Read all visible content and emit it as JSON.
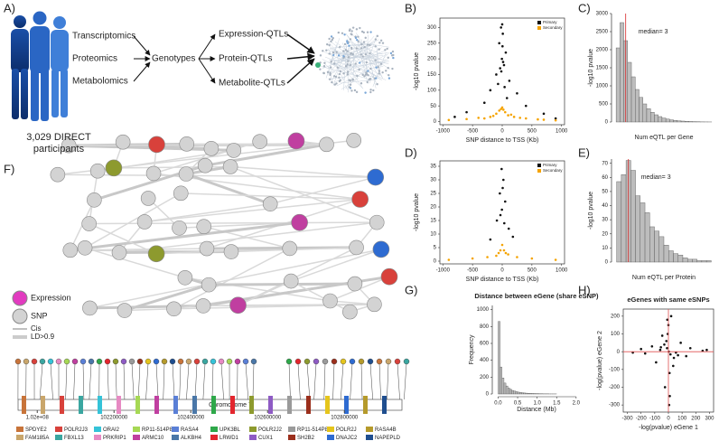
{
  "panel_labels": [
    "A)",
    "B)",
    "C)",
    "D)",
    "E)",
    "F)",
    "G)",
    "H)"
  ],
  "panel_a": {
    "participants": "3,029 DIRECT participants",
    "sources": [
      "Transcriptomics",
      "Proteomics",
      "Metabolomics"
    ],
    "hub": "Genotypes",
    "qtls": [
      "Expression-QTLs",
      "Protein-QTLs",
      "Metabolite-QTLs"
    ]
  },
  "panel_f": {
    "legend": [
      "Expression",
      "SNP",
      "Cis",
      "LD>0.9"
    ],
    "track": {
      "label": "Chromosome 7",
      "xlim": [
        101950000,
        102950000
      ],
      "ticks": [
        {
          "value": 102000000,
          "label": "1.02e+08"
        },
        102200000,
        102400000,
        102600000,
        102800000
      ]
    },
    "genes": [
      {
        "name": "SPDYE2",
        "color": "#c8743a"
      },
      {
        "name": "FAM185A",
        "color": "#c9a66b"
      },
      {
        "name": "POLR2J3",
        "color": "#d8413b"
      },
      {
        "name": "FBXL13",
        "color": "#3aa6a0"
      },
      {
        "name": "ORAI2",
        "color": "#35c3d8"
      },
      {
        "name": "PRKRIP1",
        "color": "#e78ac3"
      },
      {
        "name": "RP11-514P8.5",
        "color": "#a6d854"
      },
      {
        "name": "ARMC10",
        "color": "#c03fa0"
      },
      {
        "name": "RASA4",
        "color": "#5a7fd6"
      },
      {
        "name": "ALKBH4",
        "color": "#4a77a8"
      },
      {
        "name": "UPK3BL",
        "color": "#2ea84a"
      },
      {
        "name": "LRWD1",
        "color": "#e3262e"
      },
      {
        "name": "POLR2J2",
        "color": "#8d9a2e"
      },
      {
        "name": "CUX1",
        "color": "#8e5bc4"
      },
      {
        "name": "RP11-514P8.7",
        "color": "#9a9a9a"
      },
      {
        "name": "SH2B2",
        "color": "#9b2f1c"
      },
      {
        "name": "POLR2J",
        "color": "#e5c51c"
      },
      {
        "name": "DNAJC2",
        "color": "#2e6bd1"
      },
      {
        "name": "RASA4B",
        "color": "#b59a2b"
      },
      {
        "name": "NAPEPLD",
        "color": "#1f4e8f"
      }
    ]
  },
  "chart_data": [
    {
      "type": "scatter",
      "xlabel": "SNP distance to TSS (Kb)",
      "ylabel": "-log10 pvalue",
      "xlim": [
        -1050,
        1050
      ],
      "ylim": [
        -10,
        330
      ],
      "xticks": [
        -1000,
        -500,
        0,
        500,
        1000
      ],
      "yticks": [
        0,
        50,
        100,
        150,
        200,
        250,
        300
      ],
      "legend": "top-right",
      "series": [
        {
          "name": "Primary",
          "color": "#111111",
          "x": [
            -20,
            10,
            -50,
            60,
            -5,
            30,
            -100,
            120,
            -200,
            250,
            -15,
            5,
            -300,
            400,
            -600,
            700,
            -800,
            900,
            40,
            -70,
            0,
            15,
            -35,
            80
          ],
          "values": [
            300,
            280,
            250,
            220,
            200,
            180,
            150,
            130,
            100,
            90,
            160,
            240,
            60,
            50,
            30,
            25,
            15,
            10,
            110,
            120,
            310,
            190,
            170,
            75
          ]
        },
        {
          "name": "Secondary",
          "color": "#f5a300",
          "x": [
            -900,
            -600,
            -400,
            -200,
            -100,
            -50,
            0,
            50,
            100,
            200,
            400,
            600,
            900,
            -300,
            300,
            -20,
            20,
            -150,
            150,
            700
          ],
          "values": [
            5,
            8,
            12,
            15,
            25,
            35,
            45,
            30,
            20,
            15,
            10,
            7,
            4,
            10,
            12,
            40,
            38,
            18,
            22,
            6
          ]
        }
      ]
    },
    {
      "type": "histogram",
      "xlabel": "Num eQTL per Gene",
      "ylabel": "-log10 pvalue",
      "color": "#bdbdbd",
      "bins": [
        0.5,
        1.5,
        2.5,
        3.5,
        4.5,
        5.5,
        6.5,
        7.5,
        8.5,
        9.5,
        10.5,
        11.5,
        12.5,
        13.5,
        14.5,
        15.5,
        16.5,
        17.5,
        18.5,
        19.5,
        20.5,
        21.5,
        22.5,
        23.5,
        24.5,
        25.5
      ],
      "values": [
        2050,
        2750,
        2250,
        1650,
        1250,
        900,
        680,
        500,
        370,
        270,
        200,
        150,
        110,
        80,
        60,
        45,
        33,
        25,
        18,
        13,
        9,
        6,
        4,
        3,
        2
      ],
      "xlim": [
        0,
        26
      ],
      "ylim": [
        0,
        3000
      ],
      "yticks": [
        0,
        500,
        1000,
        1500,
        2000,
        2500,
        3000
      ],
      "annotations": [
        {
          "text": "median= 3",
          "x": 3
        }
      ]
    },
    {
      "type": "scatter",
      "xlabel": "SNP distance to TSS (Kb)",
      "ylabel": "-log10 pvalue",
      "xlim": [
        -1050,
        1050
      ],
      "ylim": [
        -1,
        37
      ],
      "xticks": [
        -1000,
        -500,
        0,
        500,
        1000
      ],
      "yticks": [
        0,
        5,
        10,
        15,
        20,
        25,
        30,
        35
      ],
      "legend": "top-right",
      "series": [
        {
          "name": "Primary",
          "color": "#111111",
          "x": [
            -10,
            20,
            -40,
            50,
            -90,
            110,
            -5,
            8,
            -200,
            180,
            -30,
            35
          ],
          "values": [
            34,
            30,
            25,
            22,
            15,
            12,
            19,
            27,
            8,
            9,
            17,
            14
          ]
        },
        {
          "name": "Secondary",
          "color": "#f5a300",
          "x": [
            -900,
            -500,
            -250,
            -100,
            -30,
            0,
            30,
            100,
            250,
            500,
            900,
            -60,
            60
          ],
          "values": [
            0.5,
            1,
            1.5,
            2,
            4,
            6,
            4,
            2.5,
            1.5,
            1,
            0.5,
            3,
            3
          ]
        }
      ]
    },
    {
      "type": "histogram",
      "xlabel": "Num eQTL per Protein",
      "ylabel": "-log10 pvalue",
      "color": "#bdbdbd",
      "bins": [
        0.5,
        1.5,
        2.5,
        3.5,
        4.5,
        5.5,
        6.5,
        7.5,
        8.5,
        9.5,
        10.5,
        11.5,
        12.5,
        13.5,
        14.5,
        15.5,
        16.5,
        17.5,
        18.5,
        19.5,
        20.5
      ],
      "values": [
        57,
        62,
        72,
        65,
        47,
        42,
        35,
        25,
        22,
        18,
        12,
        8,
        6,
        5,
        3,
        2,
        2,
        1,
        1,
        1
      ],
      "xlim": [
        0,
        21
      ],
      "ylim": [
        0,
        73
      ],
      "yticks": [
        0,
        10,
        20,
        30,
        40,
        50,
        60,
        70
      ],
      "annotations": [
        {
          "text": "median= 3",
          "x": 3
        }
      ]
    },
    {
      "type": "histogram",
      "title": "Distance between eGene (share eSNP)",
      "xlabel": "Distance (Mb)",
      "ylabel": "Frequency",
      "color": "#bdbdbd",
      "bins": [
        0,
        0.05,
        0.1,
        0.15,
        0.2,
        0.25,
        0.3,
        0.35,
        0.4,
        0.45,
        0.5,
        0.55,
        0.6,
        0.65,
        0.7,
        0.75,
        0.8,
        0.85,
        0.9,
        0.95,
        1.0,
        1.05,
        1.1,
        1.15,
        1.2,
        1.25,
        1.3,
        1.35,
        1.4,
        1.45,
        1.5
      ],
      "values": [
        860,
        320,
        190,
        130,
        95,
        70,
        55,
        42,
        35,
        28,
        22,
        18,
        15,
        12,
        10,
        8,
        7,
        6,
        5,
        4,
        4,
        3,
        3,
        2,
        2,
        2,
        1,
        1,
        1,
        1
      ],
      "xlim": [
        -0.08,
        2.05
      ],
      "ylim": [
        0,
        1050
      ],
      "xticks": [
        {
          "value": 0,
          "label": "0.0"
        },
        {
          "value": 0.5,
          "label": "0.5"
        },
        {
          "value": 1,
          "label": "1.0"
        },
        {
          "value": 1.5,
          "label": "1.5"
        },
        {
          "value": 2,
          "label": "2.0"
        }
      ],
      "yticks": [
        0,
        200,
        400,
        600,
        800,
        1000
      ]
    },
    {
      "type": "scatter",
      "title": "eGenes with same eSNPs",
      "xlabel": "-log(pvalue) eGene 1",
      "ylabel": "-log(pvalue) eGene 2",
      "xlim": [
        -330,
        330
      ],
      "ylim": [
        -340,
        240
      ],
      "xticks": [
        -300,
        -200,
        -100,
        0,
        100,
        200,
        300
      ],
      "yticks": [
        -300,
        -200,
        -100,
        0,
        100,
        200
      ],
      "hlines": [
        0
      ],
      "vlines": [
        0
      ],
      "series": [
        {
          "name": "eGene pairs",
          "color": "#111111",
          "x": [
            -10,
            15,
            -30,
            40,
            -60,
            70,
            -5,
            8,
            -120,
            130,
            -200,
            250,
            20,
            -25,
            5,
            -15,
            90,
            -90,
            0,
            35,
            -45,
            160,
            -170,
            10,
            -8,
            280,
            -260,
            55,
            -55,
            3
          ],
          "values": [
            20,
            -15,
            40,
            -35,
            10,
            -20,
            100,
            -120,
            30,
            -25,
            15,
            5,
            200,
            -200,
            -300,
            60,
            50,
            -60,
            150,
            -80,
            90,
            20,
            -10,
            -250,
            180,
            10,
            -5,
            -5,
            25,
            0
          ]
        }
      ]
    }
  ]
}
